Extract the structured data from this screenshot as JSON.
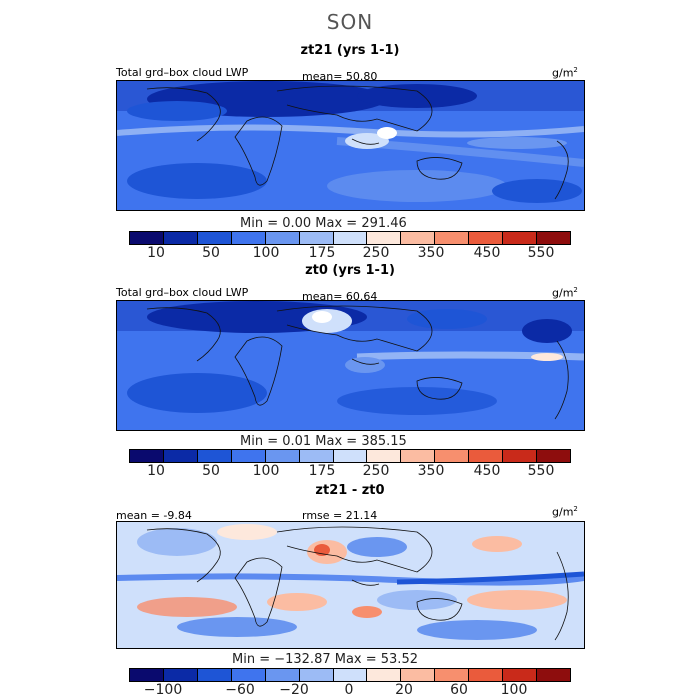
{
  "season": "SON",
  "colorbar_colors": [
    "#0a0a6e",
    "#0b2aa6",
    "#1e55d6",
    "#3f74ee",
    "#6a96f0",
    "#9cbbf5",
    "#cfe0fb",
    "#fde8dc",
    "#fbbca2",
    "#f78f6e",
    "#ea5b3c",
    "#c92a1a",
    "#8e0d0d"
  ],
  "panels": [
    {
      "title": "zt21 (yrs 1-1)",
      "variable": "Total grd–box cloud LWP",
      "stat": "mean=   50.80",
      "unit_base": "g/m",
      "unit_exp": "2",
      "minmax": "Min =    0.00 Max = 291.46",
      "ticks": [
        "10",
        "50",
        "100",
        "175",
        "250",
        "350",
        "450",
        "550"
      ]
    },
    {
      "title": "zt0 (yrs 1-1)",
      "variable": "Total grd–box cloud LWP",
      "stat": "mean=   60.64",
      "unit_base": "g/m",
      "unit_exp": "2",
      "minmax": "Min =    0.01 Max = 385.15",
      "ticks": [
        "10",
        "50",
        "100",
        "175",
        "250",
        "350",
        "450",
        "550"
      ]
    },
    {
      "title": "zt21 - zt0",
      "stat_left": "mean =  -9.84",
      "stat": "rmse =  21.14",
      "unit_base": "g/m",
      "unit_exp": "2",
      "minmax": "Min = −132.87 Max =  53.52",
      "ticks": [
        "−100",
        "−60",
        "−20",
        "0",
        "20",
        "60",
        "100"
      ]
    }
  ]
}
